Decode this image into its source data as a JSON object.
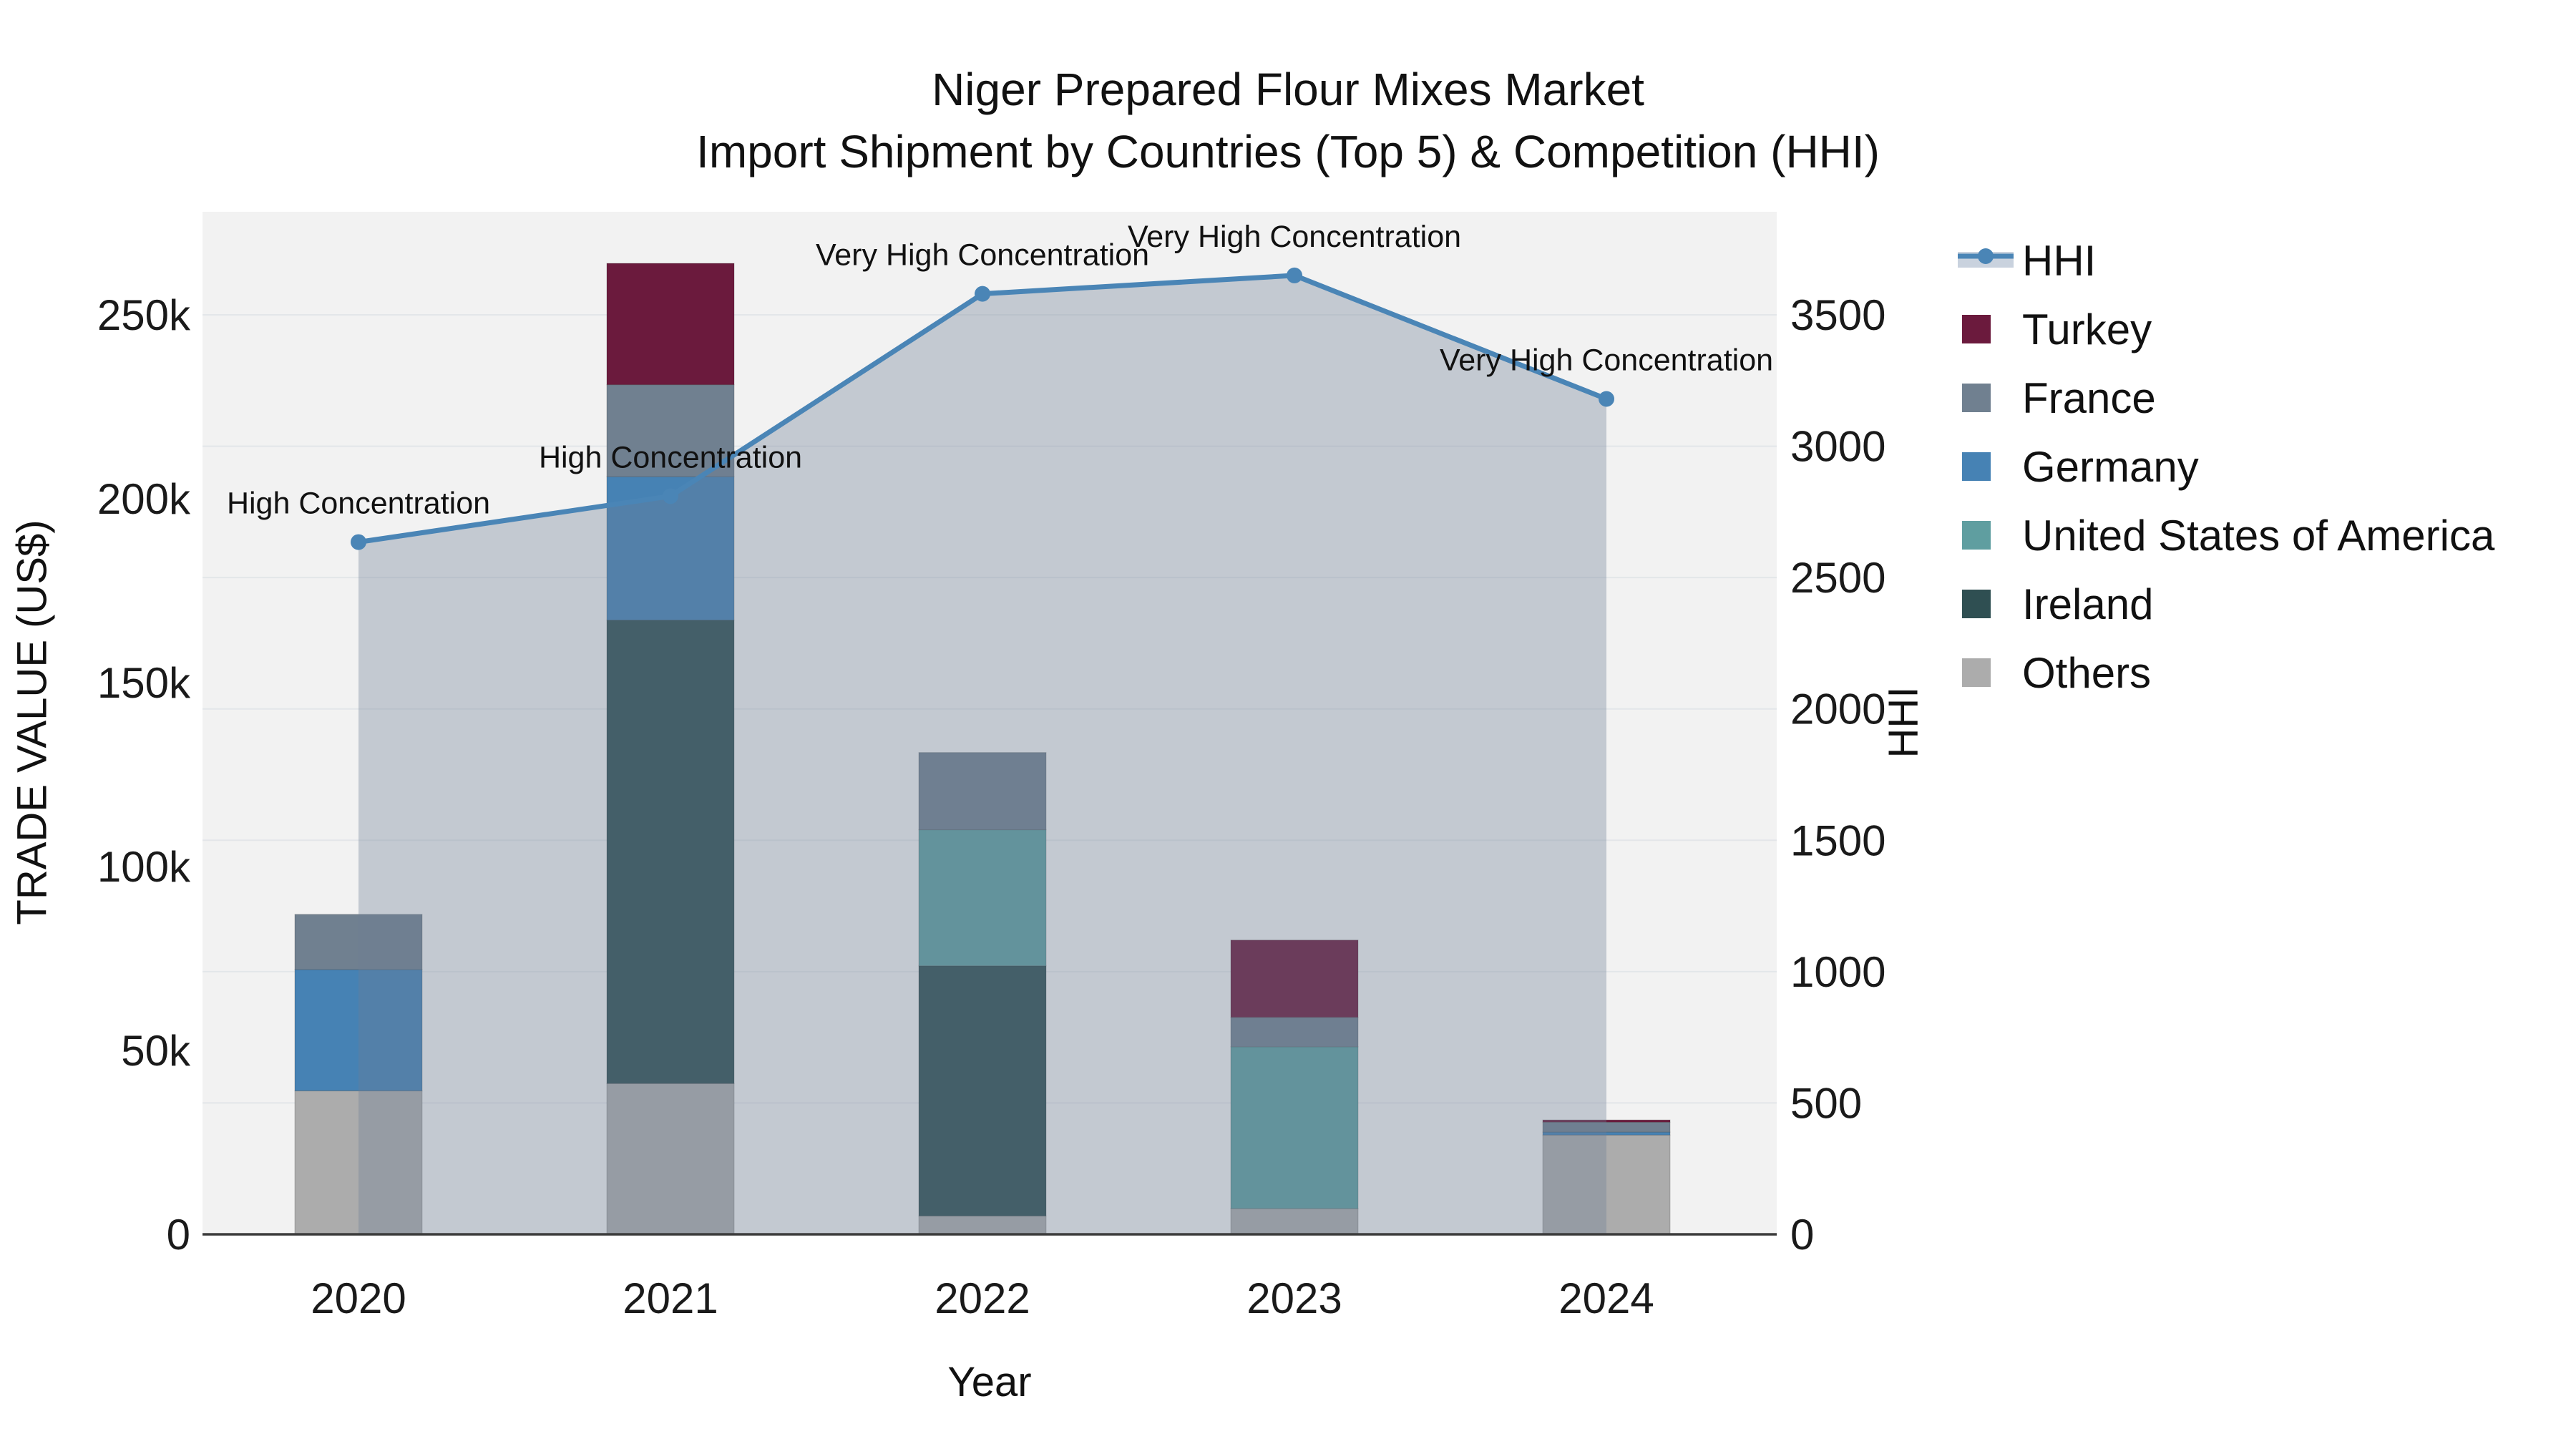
{
  "chart_data": {
    "type": "combo: stacked bar (left axis) + line with area fill (right axis)",
    "title": "Niger Prepared Flour Mixes Market",
    "subtitle": "Import Shipment by Countries (Top 5) & Competition (HHI)",
    "xlabel": "Year",
    "ylabel_left": "TRADE VALUE (US$)",
    "ylabel_right": "HHI",
    "categories": [
      "2020",
      "2021",
      "2022",
      "2023",
      "2024"
    ],
    "bar_series": [
      {
        "name": "Others",
        "color": "#ACACAC",
        "values": [
          39000,
          41000,
          5000,
          7000,
          27000
        ]
      },
      {
        "name": "Ireland",
        "color": "#2F4F52",
        "values": [
          0,
          126000,
          68000,
          0,
          0
        ]
      },
      {
        "name": "United States of America",
        "color": "#5F9EA0",
        "values": [
          0,
          0,
          37000,
          44000,
          0
        ]
      },
      {
        "name": "Germany",
        "color": "#4682B4",
        "values": [
          33000,
          39000,
          0,
          0,
          800
        ]
      },
      {
        "name": "France",
        "color": "#708090",
        "values": [
          15000,
          25000,
          21000,
          8000,
          2700
        ]
      },
      {
        "name": "Turkey",
        "color": "#6B1A3D",
        "values": [
          0,
          33000,
          0,
          21000,
          600
        ]
      }
    ],
    "stack_order": "bottom to top as listed",
    "line_series": {
      "name": "HHI",
      "color": "#4A85B6",
      "area_fill": "rgba(110,125,150,0.35)",
      "values": [
        2635,
        2810,
        3580,
        3650,
        3180
      ]
    },
    "point_annotations": [
      "High Concentration",
      "High Concentration",
      "Very High Concentration",
      "Very High Concentration",
      "Very High Concentration"
    ],
    "y_left_axis": {
      "tick_labels": [
        "0",
        "50k",
        "100k",
        "150k",
        "200k",
        "250k"
      ],
      "tick_values": [
        0,
        50000,
        100000,
        150000,
        200000,
        250000
      ]
    },
    "y_right_axis": {
      "tick_labels": [
        "0",
        "500",
        "1000",
        "1500",
        "2000",
        "2500",
        "3000",
        "3500"
      ],
      "tick_values": [
        0,
        500,
        1000,
        1500,
        2000,
        2500,
        3000,
        3500
      ]
    },
    "grid": "horizontal gridlines at right-axis intervals",
    "plot_background": "#F2F2F2",
    "gridline_color": "#E3E6E9",
    "axis_line_color": "#3C3C3C",
    "legend_position": "right"
  },
  "legend": {
    "items": [
      {
        "label": "HHI",
        "type": "line",
        "color": "#4A85B6",
        "band_color": "#C9D2DE"
      },
      {
        "label": "Turkey",
        "type": "swatch",
        "color": "#6B1A3D"
      },
      {
        "label": "France",
        "type": "swatch",
        "color": "#708090"
      },
      {
        "label": "Germany",
        "type": "swatch",
        "color": "#4682B4"
      },
      {
        "label": "United States of America",
        "type": "swatch",
        "color": "#5F9EA0"
      },
      {
        "label": "Ireland",
        "type": "swatch",
        "color": "#2F4F52"
      },
      {
        "label": "Others",
        "type": "swatch",
        "color": "#ACACAC"
      }
    ]
  }
}
